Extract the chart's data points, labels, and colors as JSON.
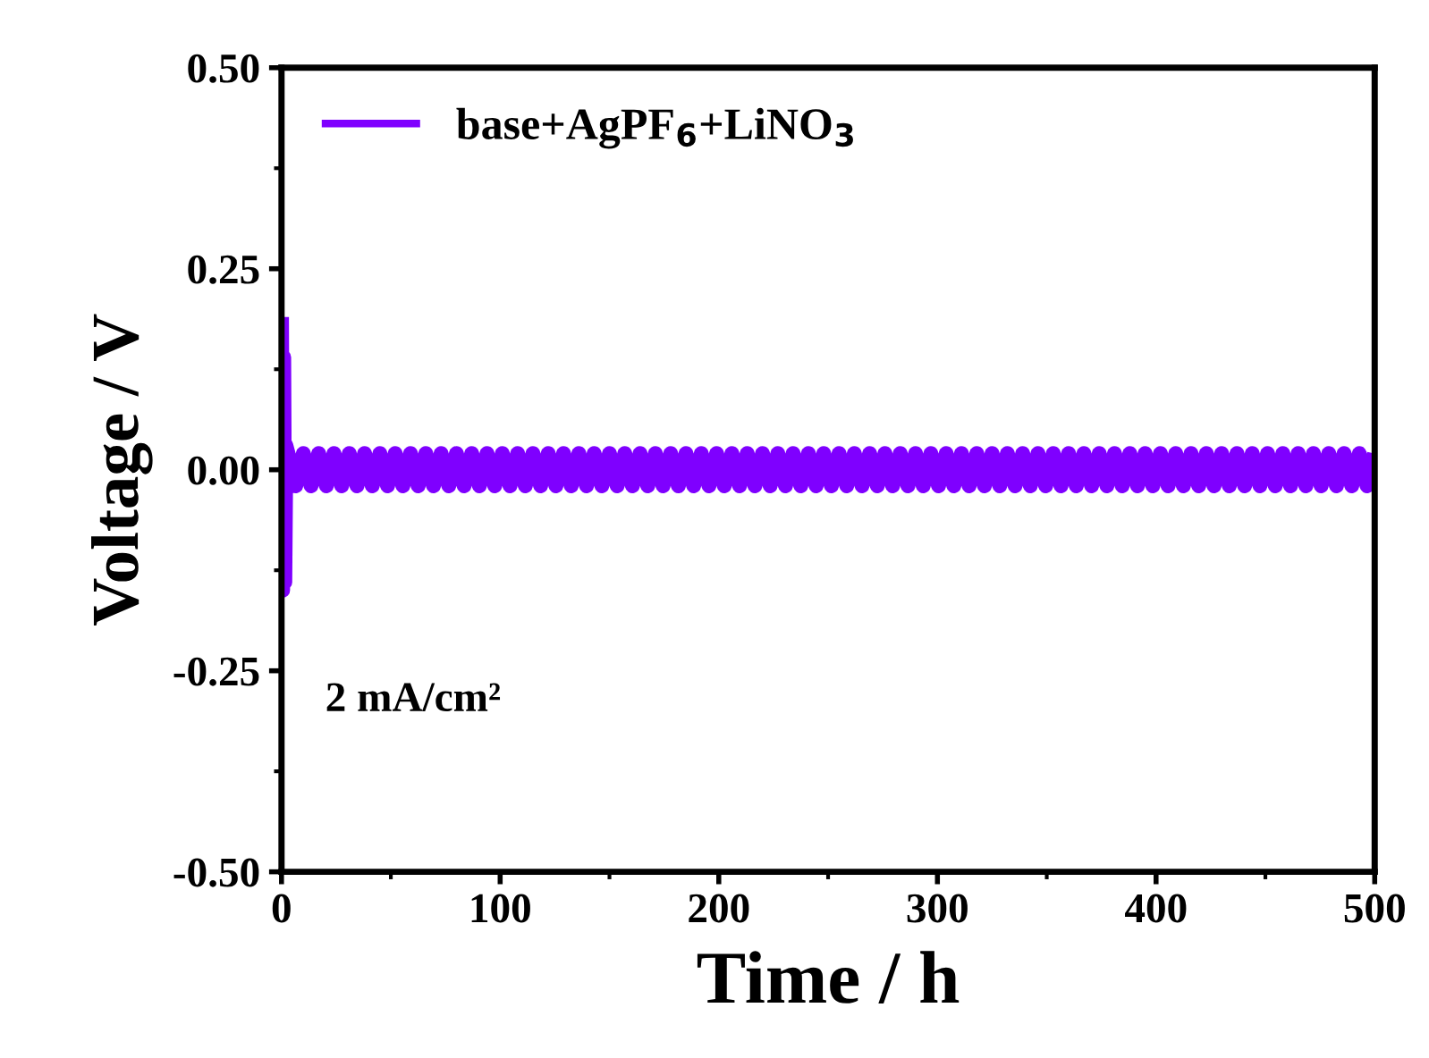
{
  "chart_data": {
    "type": "line",
    "xlabel": "Time / h",
    "ylabel": "Voltage / V",
    "annotations": [
      "2 mA/cm²"
    ],
    "xlim": [
      0,
      500
    ],
    "xticks": [
      0,
      100,
      200,
      300,
      400,
      500
    ],
    "ylim": [
      -0.5,
      0.5
    ],
    "yticks": [
      {
        "value": -0.5,
        "label": "-0.50"
      },
      {
        "value": -0.25,
        "label": "-0.25"
      },
      {
        "value": 0,
        "label": "0.00"
      },
      {
        "value": 0.25,
        "label": "0.25"
      },
      {
        "value": 0.5,
        "label": "0.50"
      }
    ],
    "legend": "top left",
    "grid": false,
    "marker": "none",
    "line_style": "solid",
    "series": [
      {
        "name": "base+AgPF$_{6}$+LiNO$_{3}$",
        "color": "#7f00ff",
        "x": [
          0,
          0.5,
          1,
          1.5,
          2,
          3,
          6.5,
          10,
          13.5,
          17,
          20.5,
          24,
          27.5,
          31,
          34.5,
          38,
          41.5,
          45,
          48.5,
          52,
          55.5,
          59,
          62.5,
          66,
          69.5,
          73,
          76.5,
          80,
          83.5,
          87,
          90.5,
          94,
          97.5,
          101,
          104.5,
          108,
          111.5,
          115,
          118.5,
          122,
          125.5,
          129,
          132.5,
          136,
          139.5,
          143,
          146.5,
          150,
          153.5,
          157,
          160.5,
          164,
          167.5,
          171,
          174.5,
          178,
          181.5,
          185,
          188.5,
          192,
          195.5,
          199,
          202.5,
          206,
          209.5,
          213,
          216.5,
          220,
          223.5,
          227,
          230.5,
          234,
          237.5,
          241,
          244.5,
          248,
          251.5,
          255,
          258.5,
          262,
          265.5,
          269,
          272.5,
          276,
          279.5,
          283,
          286.5,
          290,
          293.5,
          297,
          300.5,
          304,
          307.5,
          311,
          314.5,
          318,
          321.5,
          325,
          328.5,
          332,
          335.5,
          339,
          342.5,
          346,
          349.5,
          353,
          356.5,
          360,
          363.5,
          367,
          370.5,
          374,
          377.5,
          381,
          384.5,
          388,
          391.5,
          395,
          398.5,
          402,
          405.5,
          409,
          412.5,
          416,
          419.5,
          423,
          426.5,
          430,
          433.5,
          437,
          440.5,
          444,
          447.5,
          451,
          454.5,
          458,
          461.5,
          465,
          468.5,
          472,
          475.5,
          479,
          482.5,
          486,
          489.5,
          493,
          496.5,
          500
        ],
        "values": [
          0.19,
          -0.15,
          0.14,
          -0.14,
          0.03,
          0.02,
          -0.02,
          0.02,
          -0.02,
          0.02,
          -0.02,
          0.02,
          -0.02,
          0.02,
          -0.02,
          0.02,
          -0.02,
          0.02,
          -0.02,
          0.02,
          -0.02,
          0.02,
          -0.02,
          0.02,
          -0.02,
          0.02,
          -0.02,
          0.02,
          -0.02,
          0.02,
          -0.02,
          0.02,
          -0.02,
          0.02,
          -0.02,
          0.02,
          -0.02,
          0.02,
          -0.02,
          0.02,
          -0.02,
          0.02,
          -0.02,
          0.02,
          -0.02,
          0.02,
          -0.02,
          0.02,
          -0.02,
          0.02,
          -0.02,
          0.02,
          -0.02,
          0.02,
          -0.02,
          0.02,
          -0.02,
          0.02,
          -0.02,
          0.02,
          -0.02,
          0.02,
          -0.02,
          0.02,
          -0.02,
          0.02,
          -0.02,
          0.02,
          -0.02,
          0.02,
          -0.02,
          0.02,
          -0.02,
          0.02,
          -0.02,
          0.02,
          -0.02,
          0.02,
          -0.02,
          0.02,
          -0.02,
          0.02,
          -0.02,
          0.02,
          -0.02,
          0.02,
          -0.02,
          0.02,
          -0.02,
          0.02,
          -0.02,
          0.02,
          -0.02,
          0.02,
          -0.02,
          0.02,
          -0.02,
          0.02,
          -0.02,
          0.02,
          -0.02,
          0.02,
          -0.02,
          0.02,
          -0.02,
          0.02,
          -0.02,
          0.02,
          -0.02,
          0.02,
          -0.02,
          0.02,
          -0.02,
          0.02,
          -0.02,
          0.02,
          -0.02,
          0.02,
          -0.02,
          0.02,
          -0.02,
          0.02,
          -0.02,
          0.02,
          -0.02,
          0.02,
          -0.02,
          0.02,
          -0.02,
          0.02,
          -0.02,
          0.02,
          -0.02,
          0.02,
          -0.02,
          0.02,
          -0.02,
          0.02,
          -0.02,
          0.02,
          -0.02,
          0.02,
          -0.02,
          0.02,
          -0.02,
          0.02,
          -0.02,
          0.02
        ]
      }
    ]
  }
}
